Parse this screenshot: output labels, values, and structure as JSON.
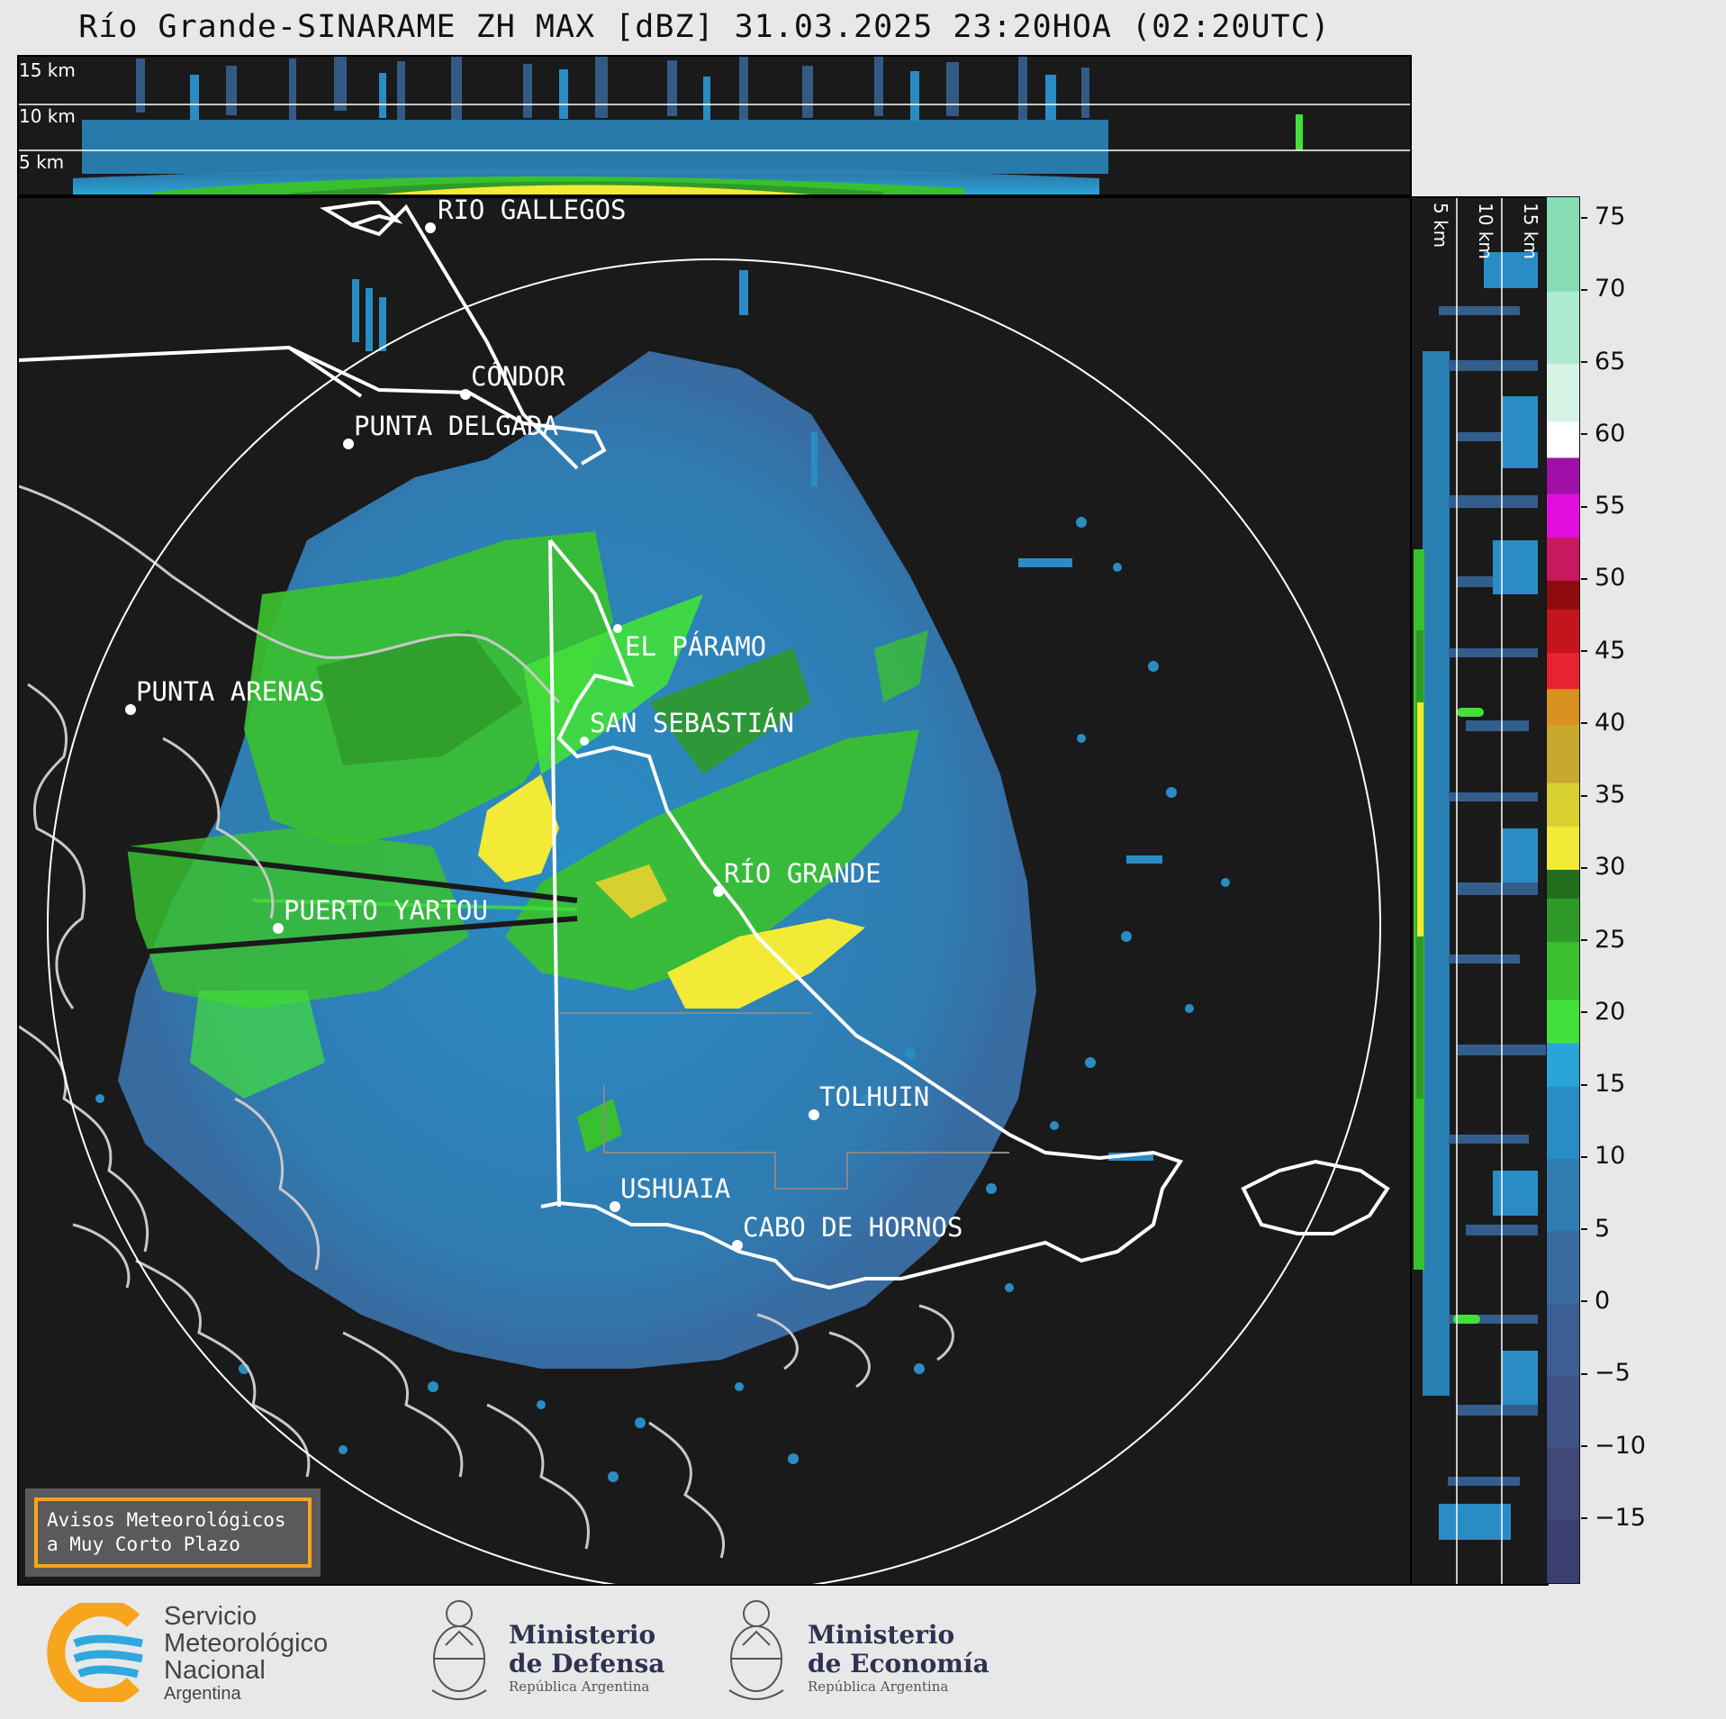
{
  "title": "Río Grande-SINARAME ZH MAX [dBZ] 31.03.2025 23:20HOA (02:20UTC)",
  "top_panel": {
    "altitude_labels": [
      "15 km",
      "10 km",
      "5 km"
    ]
  },
  "right_panel": {
    "altitude_labels": [
      "5 km",
      "10 km",
      "15 km"
    ]
  },
  "cities": [
    {
      "name": "RÍO GALLEGOS"
    },
    {
      "name": "CÓNDOR"
    },
    {
      "name": "PUNTA DELGADA"
    },
    {
      "name": "EL PÁRAMO"
    },
    {
      "name": "PUNTA ARENAS"
    },
    {
      "name": "SAN SEBASTIÁN"
    },
    {
      "name": "RÍO GRANDE"
    },
    {
      "name": "PUERTO YARTOU"
    },
    {
      "name": "TOLHUIN"
    },
    {
      "name": "USHUAIA"
    },
    {
      "name": "CABO DE HORNOS"
    }
  ],
  "colorbar": {
    "unit": "dBZ",
    "ticks": [
      "75",
      "70",
      "65",
      "60",
      "55",
      "50",
      "45",
      "40",
      "35",
      "30",
      "25",
      "20",
      "15",
      "10",
      "5",
      "0",
      "−5",
      "−10",
      "−15"
    ],
    "range": [
      -19.5,
      76.5
    ],
    "stops": [
      {
        "from": -19.5,
        "to": -15,
        "color": "#3b3f70"
      },
      {
        "from": -15,
        "to": -10,
        "color": "#404878"
      },
      {
        "from": -10,
        "to": -5,
        "color": "#3f5285"
      },
      {
        "from": -5,
        "to": 0,
        "color": "#3d5e93"
      },
      {
        "from": 0,
        "to": 5,
        "color": "#386ba0"
      },
      {
        "from": 5,
        "to": 10,
        "color": "#2f7cb2"
      },
      {
        "from": 10,
        "to": 15,
        "color": "#2a8cc4"
      },
      {
        "from": 15,
        "to": 18,
        "color": "#2aa5d8"
      },
      {
        "from": 18,
        "to": 21,
        "color": "#42e03a"
      },
      {
        "from": 21,
        "to": 25,
        "color": "#39c02f"
      },
      {
        "from": 25,
        "to": 28,
        "color": "#2f9a2a"
      },
      {
        "from": 28,
        "to": 30,
        "color": "#236f1e"
      },
      {
        "from": 30,
        "to": 33,
        "color": "#f2ea36"
      },
      {
        "from": 33,
        "to": 36,
        "color": "#d8d030"
      },
      {
        "from": 36,
        "to": 40,
        "color": "#c8a82e"
      },
      {
        "from": 40,
        "to": 42.5,
        "color": "#d9921f"
      },
      {
        "from": 42.5,
        "to": 45,
        "color": "#e8222e"
      },
      {
        "from": 45,
        "to": 48,
        "color": "#c4141e"
      },
      {
        "from": 48,
        "to": 50,
        "color": "#8e0c10"
      },
      {
        "from": 50,
        "to": 53,
        "color": "#c81860"
      },
      {
        "from": 53,
        "to": 56,
        "color": "#e10ee0"
      },
      {
        "from": 56,
        "to": 58.5,
        "color": "#a010a8"
      },
      {
        "from": 58.5,
        "to": 61,
        "color": "#ffffff"
      },
      {
        "from": 61,
        "to": 65,
        "color": "#d6f4e6"
      },
      {
        "from": 65,
        "to": 70,
        "color": "#aeead0"
      },
      {
        "from": 70,
        "to": 76.5,
        "color": "#86dcb4"
      }
    ]
  },
  "aviso": {
    "line1": "Avisos Meteorológicos",
    "line2": "a Muy Corto Plazo"
  },
  "logos": {
    "smn": {
      "line1": "Servicio",
      "line2": "Meteorológico",
      "line3": "Nacional",
      "country": "Argentina",
      "accent": "#f7a51c",
      "blue": "#2fa8e0"
    },
    "defensa": {
      "line1": "Ministerio",
      "line2": "de Defensa",
      "sub": "República Argentina"
    },
    "economia": {
      "line1": "Ministerio",
      "line2": "de Economía",
      "sub": "República Argentina"
    }
  }
}
